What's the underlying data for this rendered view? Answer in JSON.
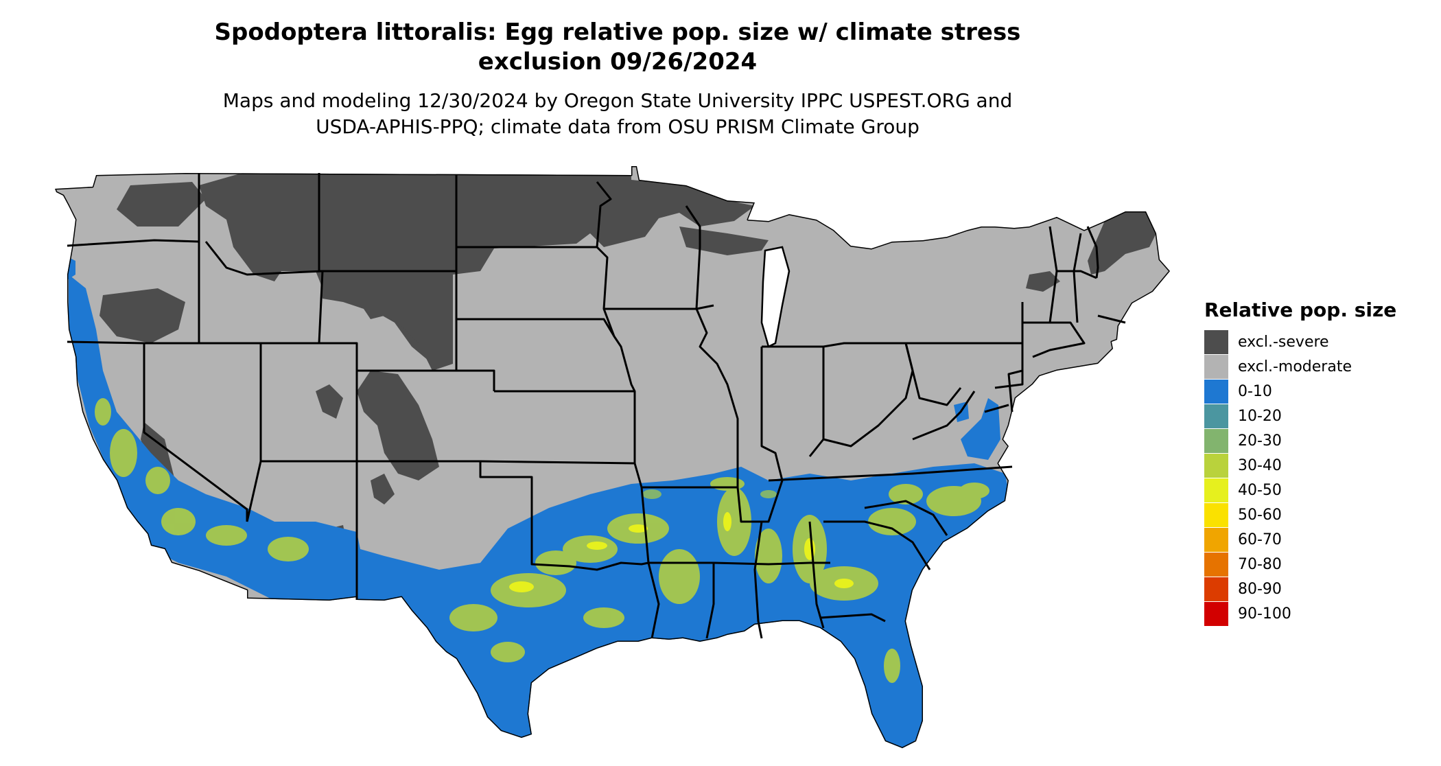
{
  "title_line1": "Spodoptera littoralis: Egg relative pop. size w/ climate stress",
  "title_line2": "exclusion 09/26/2024",
  "subtitle_line1": "Maps and modeling 12/30/2024 by Oregon State University IPPC USPEST.ORG and",
  "subtitle_line2": "USDA-APHIS-PPQ; climate data from OSU PRISM Climate Group",
  "legend": {
    "title": "Relative pop. size",
    "items": [
      {
        "label": "excl.-severe",
        "color": "#4d4d4d"
      },
      {
        "label": "excl.-moderate",
        "color": "#b3b3b3"
      },
      {
        "label": "0-10",
        "color": "#1e78d2"
      },
      {
        "label": "10-20",
        "color": "#4b96a0"
      },
      {
        "label": "20-30",
        "color": "#82b46e"
      },
      {
        "label": "30-40",
        "color": "#b9d23c"
      },
      {
        "label": "40-50",
        "color": "#e6f01e"
      },
      {
        "label": "50-60",
        "color": "#fae100"
      },
      {
        "label": "60-70",
        "color": "#f0a500"
      },
      {
        "label": "70-80",
        "color": "#e67300"
      },
      {
        "label": "80-90",
        "color": "#dc3c00"
      },
      {
        "label": "90-100",
        "color": "#d20000"
      }
    ]
  }
}
